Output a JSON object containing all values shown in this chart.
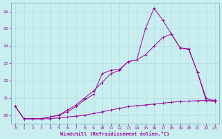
{
  "xlabel": "Windchill (Refroidissement éolien,°C)",
  "background_color": "#c8eef0",
  "grid_color": "#b8dde0",
  "line_color": "#990099",
  "xlim": [
    -0.5,
    23.5
  ],
  "ylim": [
    19.5,
    26.5
  ],
  "yticks": [
    20,
    21,
    22,
    23,
    24,
    25,
    26
  ],
  "xticks": [
    0,
    1,
    2,
    3,
    4,
    5,
    6,
    7,
    8,
    9,
    10,
    11,
    12,
    13,
    14,
    15,
    16,
    17,
    18,
    19,
    20,
    21,
    22,
    23
  ],
  "series1_x": [
    0,
    1,
    2,
    3,
    4,
    5,
    6,
    7,
    8,
    9,
    10,
    11,
    12,
    13,
    14,
    15,
    16,
    17,
    18,
    19,
    20,
    21,
    22,
    23
  ],
  "series1_y": [
    20.5,
    19.8,
    19.8,
    19.8,
    19.8,
    19.85,
    19.9,
    19.95,
    20.0,
    20.1,
    20.2,
    20.3,
    20.4,
    20.5,
    20.55,
    20.6,
    20.65,
    20.7,
    20.75,
    20.8,
    20.82,
    20.84,
    20.86,
    20.88
  ],
  "series2_x": [
    0,
    1,
    2,
    3,
    4,
    5,
    6,
    7,
    8,
    9,
    10,
    11,
    12,
    13,
    14,
    15,
    16,
    17,
    18,
    19,
    20,
    21,
    22,
    23
  ],
  "series2_y": [
    20.5,
    19.8,
    19.8,
    19.8,
    19.9,
    20.0,
    20.3,
    20.6,
    21.0,
    21.4,
    21.9,
    22.4,
    22.6,
    23.1,
    23.2,
    23.5,
    24.0,
    24.5,
    24.7,
    23.9,
    23.8,
    22.5,
    21.0,
    20.8
  ],
  "series3_x": [
    0,
    1,
    2,
    3,
    4,
    5,
    6,
    7,
    8,
    9,
    10,
    11,
    12,
    13,
    14,
    15,
    16,
    17,
    18,
    19,
    20,
    21,
    22,
    23
  ],
  "series3_y": [
    20.5,
    19.8,
    19.8,
    19.8,
    19.9,
    20.0,
    20.2,
    20.5,
    20.9,
    21.2,
    22.4,
    22.6,
    22.65,
    23.1,
    23.2,
    25.0,
    26.2,
    25.5,
    24.7,
    23.9,
    23.85,
    22.5,
    20.85,
    20.8
  ]
}
